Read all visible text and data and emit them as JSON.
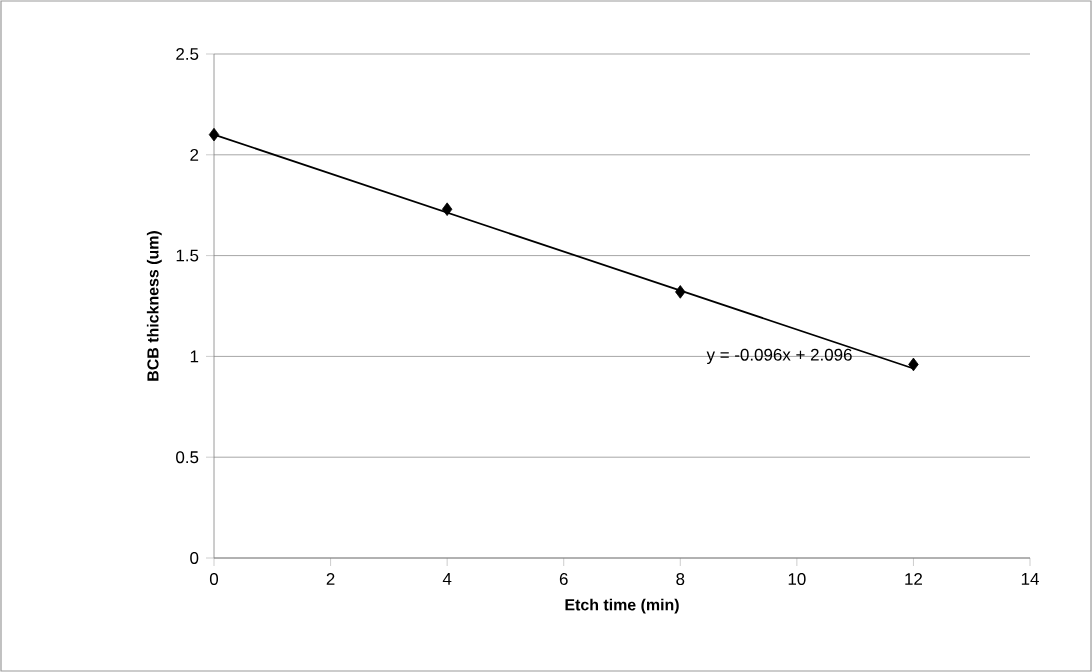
{
  "chart_data": {
    "type": "scatter",
    "xlabel": "Etch time (min)",
    "ylabel": "BCB thickness (um)",
    "xlim": [
      0,
      14
    ],
    "ylim": [
      0,
      2.5
    ],
    "xticks": [
      0,
      2,
      4,
      6,
      8,
      10,
      12,
      14
    ],
    "yticks": [
      0,
      0.5,
      1,
      1.5,
      2,
      2.5
    ],
    "grid": "y",
    "marker": "diamond",
    "series": [
      {
        "color": "#000000",
        "x": [
          0,
          4,
          8,
          12
        ],
        "values": [
          2.1,
          1.73,
          1.32,
          0.96
        ]
      },
      {
        "type": "line",
        "marker": "none",
        "color": "#000000",
        "x": [
          0,
          12
        ],
        "values": [
          2.1,
          0.94
        ]
      }
    ],
    "annotations": [
      "y = -0.096x + 2.096"
    ]
  }
}
